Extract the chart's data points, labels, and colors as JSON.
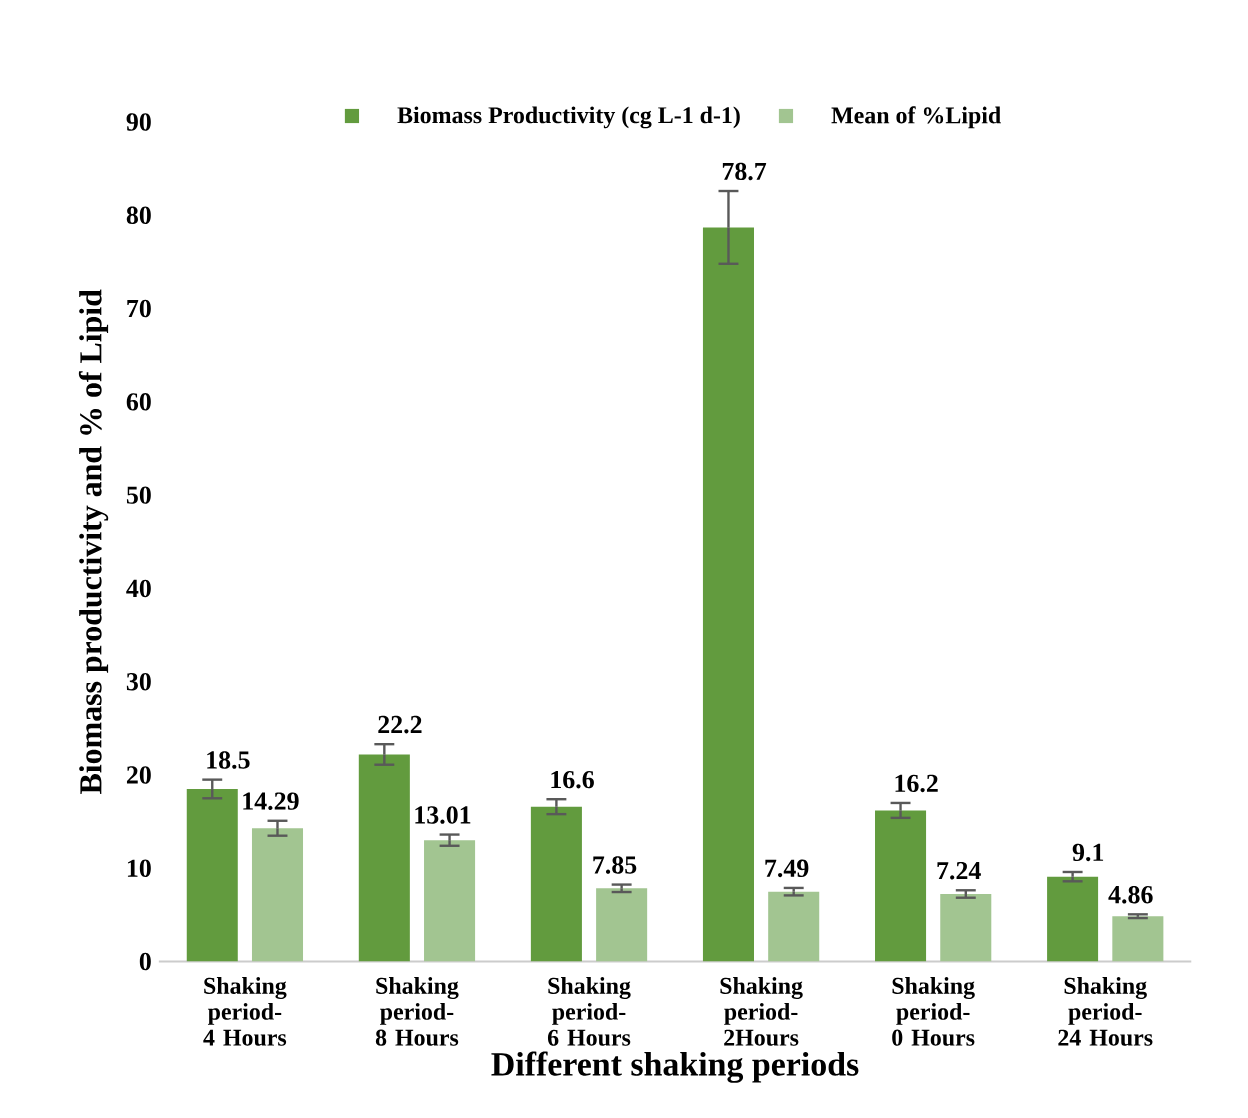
{
  "chart_data": {
    "type": "bar",
    "xlabel": "Different shaking periods",
    "ylabel": "Biomass productivity and % of Lipid",
    "categories": [
      "Shaking period- 4 Hours",
      "Shaking period- 8 Hours",
      "Shaking period- 6 Hours",
      "Shaking period-2Hours",
      "Shaking period- 0 Hours",
      "Shaking period- 24 Hours"
    ],
    "series": [
      {
        "name": "Biomass Productivity  (cg L-1 d-1)",
        "color": "#629b3e",
        "values": [
          18.5,
          22.2,
          16.6,
          78.7,
          16.2,
          9.1
        ],
        "errors": [
          1.0,
          1.1,
          0.8,
          3.9,
          0.8,
          0.5
        ]
      },
      {
        "name": "Mean of %Lipid",
        "color": "#a2c591",
        "values": [
          14.29,
          13.01,
          7.85,
          7.49,
          7.24,
          4.86
        ],
        "errors": [
          0.8,
          0.6,
          0.4,
          0.4,
          0.4,
          0.2
        ]
      }
    ],
    "ylim": [
      0,
      90
    ],
    "yticks": [
      0,
      10,
      20,
      30,
      40,
      50,
      60,
      70,
      80,
      90
    ],
    "grid": false,
    "legend": "top",
    "data_labels": true
  }
}
